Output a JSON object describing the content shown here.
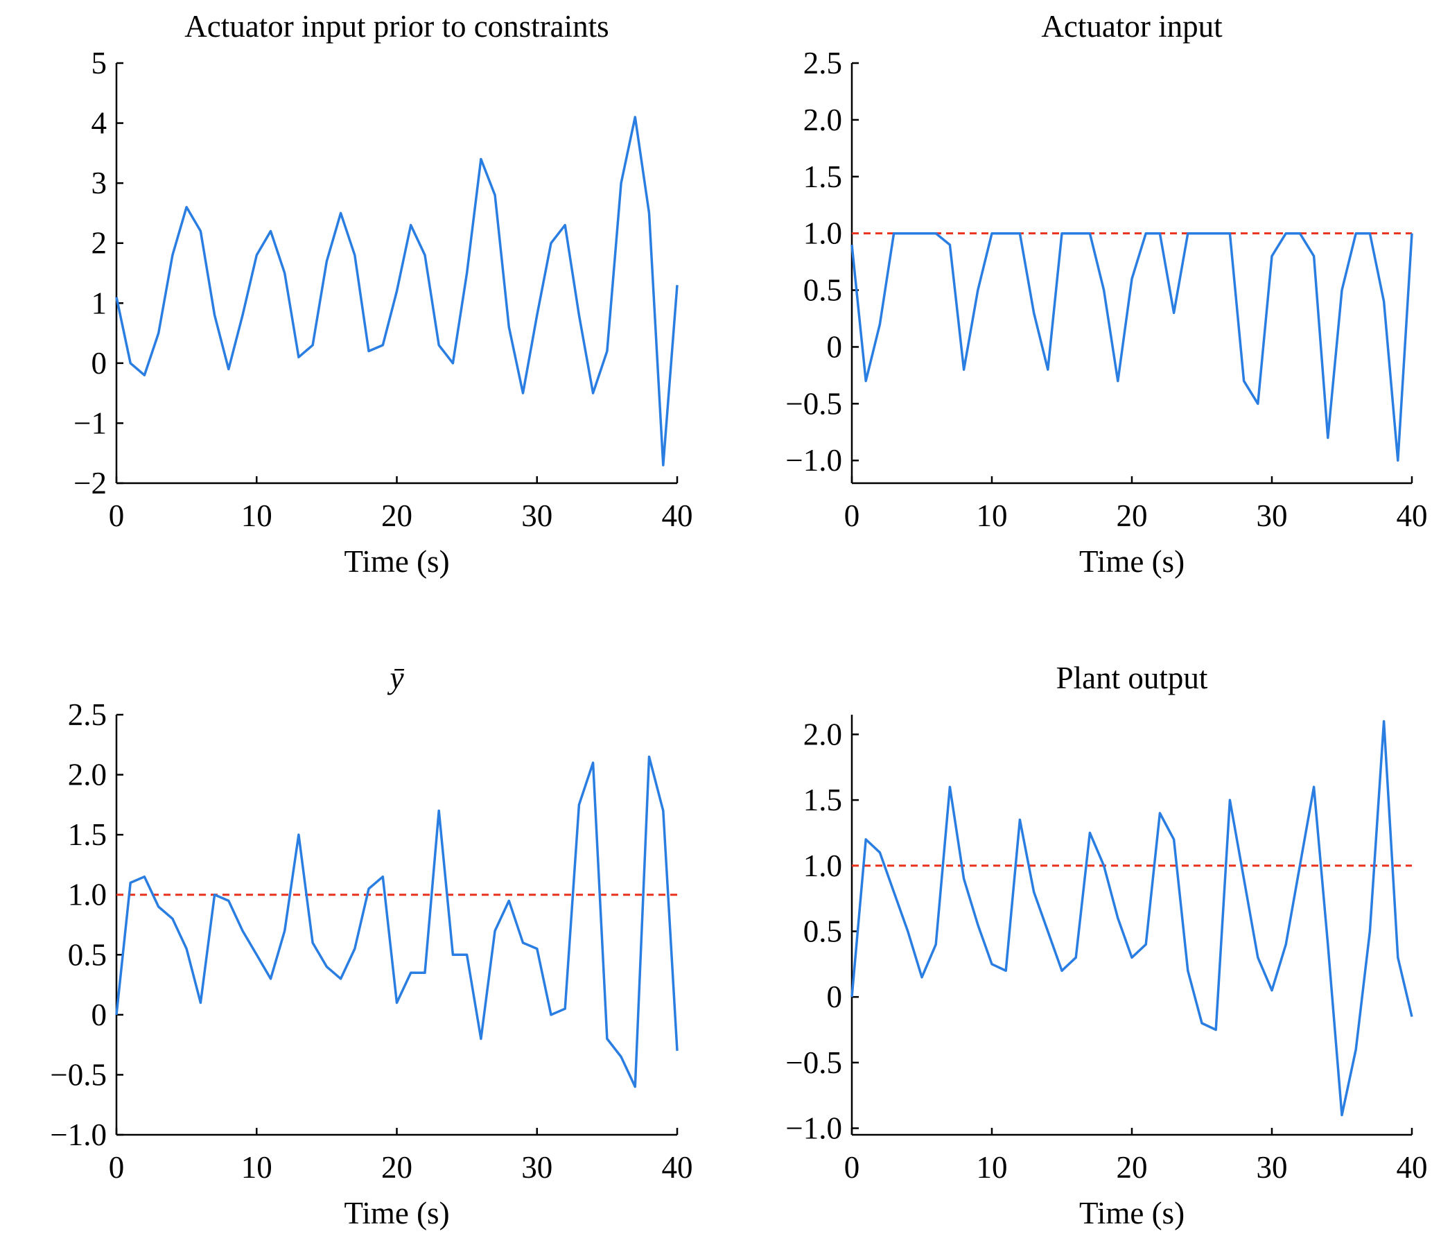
{
  "chart_data": [
    {
      "type": "line",
      "title": "Actuator input prior to constraints",
      "xlabel": "Time (s)",
      "x": [
        0,
        1,
        2,
        3,
        4,
        5,
        6,
        7,
        8,
        9,
        10,
        11,
        12,
        13,
        14,
        15,
        16,
        17,
        18,
        19,
        20,
        21,
        22,
        23,
        24,
        25,
        26,
        27,
        28,
        29,
        30,
        31,
        32,
        33,
        34,
        35,
        36,
        37,
        38,
        39,
        40
      ],
      "series": [
        {
          "name": null,
          "color": "#2a7de1",
          "values": [
            1.1,
            0.0,
            -0.2,
            0.5,
            1.8,
            2.6,
            2.2,
            0.8,
            -0.1,
            0.8,
            1.8,
            2.2,
            1.5,
            0.1,
            0.3,
            1.7,
            2.5,
            1.8,
            0.2,
            0.3,
            1.2,
            2.3,
            1.8,
            0.3,
            0.0,
            1.5,
            3.4,
            2.8,
            0.6,
            -0.5,
            0.8,
            2.0,
            2.3,
            0.8,
            -0.5,
            0.2,
            3.0,
            4.1,
            2.5,
            -1.7,
            1.3
          ]
        }
      ],
      "xlim": [
        0,
        40
      ],
      "xticks": [
        0,
        10,
        20,
        30,
        40
      ],
      "ylim": [
        -2,
        5
      ],
      "yticks": [
        {
          "value": -2,
          "label": "−2"
        },
        {
          "value": -1,
          "label": "−1"
        },
        0,
        1,
        2,
        3,
        4,
        5
      ]
    },
    {
      "type": "line",
      "title": "Actuator input",
      "xlabel": "Time (s)",
      "x": [
        0,
        1,
        2,
        3,
        4,
        5,
        6,
        7,
        8,
        9,
        10,
        11,
        12,
        13,
        14,
        15,
        16,
        17,
        18,
        19,
        20,
        21,
        22,
        23,
        24,
        25,
        26,
        27,
        28,
        29,
        30,
        31,
        32,
        33,
        34,
        35,
        36,
        37,
        38,
        39,
        40
      ],
      "series": [
        {
          "name": null,
          "color": "#2a7de1",
          "values": [
            0.9,
            -0.3,
            0.2,
            1,
            1,
            1,
            1,
            0.9,
            -0.2,
            0.5,
            1,
            1,
            1,
            0.3,
            -0.2,
            1,
            1,
            1,
            0.5,
            -0.3,
            0.6,
            1,
            1,
            0.3,
            1,
            1,
            1,
            1,
            -0.3,
            -0.5,
            0.8,
            1,
            1,
            0.8,
            -0.8,
            0.5,
            1,
            1,
            0.4,
            -1,
            1
          ]
        }
      ],
      "reference": {
        "value": 1,
        "color": "#e8321e"
      },
      "xlim": [
        0,
        40
      ],
      "xticks": [
        0,
        10,
        20,
        30,
        40
      ],
      "ylim": [
        -1.2,
        2.5
      ],
      "yticks": [
        {
          "value": -1,
          "label": "−1.0"
        },
        {
          "value": -0.5,
          "label": "−0.5"
        },
        0,
        0.5,
        {
          "value": 1,
          "label": "1.0"
        },
        1.5,
        {
          "value": 2,
          "label": "2.0"
        },
        2.5
      ]
    },
    {
      "type": "line",
      "title": "ȳ",
      "xlabel": "Time (s)",
      "x": [
        0,
        1,
        2,
        3,
        4,
        5,
        6,
        7,
        8,
        9,
        10,
        11,
        12,
        13,
        14,
        15,
        16,
        17,
        18,
        19,
        20,
        21,
        22,
        23,
        24,
        25,
        26,
        27,
        28,
        29,
        30,
        31,
        32,
        33,
        34,
        35,
        36,
        37,
        38,
        39,
        40
      ],
      "series": [
        {
          "name": null,
          "color": "#2a7de1",
          "values": [
            0,
            1.1,
            1.15,
            0.9,
            0.8,
            0.55,
            0.1,
            1.0,
            0.95,
            0.7,
            0.5,
            0.3,
            0.7,
            1.5,
            0.6,
            0.4,
            0.3,
            0.55,
            1.05,
            1.15,
            0.1,
            0.35,
            0.35,
            1.7,
            0.5,
            0.5,
            -0.2,
            0.7,
            0.95,
            0.6,
            0.55,
            0.0,
            0.05,
            1.75,
            2.1,
            -0.2,
            -0.35,
            -0.6,
            2.15,
            1.7,
            -0.3
          ]
        }
      ],
      "reference": {
        "value": 1,
        "color": "#e8321e"
      },
      "xlim": [
        0,
        40
      ],
      "xticks": [
        0,
        10,
        20,
        30,
        40
      ],
      "ylim": [
        -1,
        2.5
      ],
      "yticks": [
        {
          "value": -1,
          "label": "−1.0"
        },
        {
          "value": -0.5,
          "label": "−0.5"
        },
        0,
        0.5,
        {
          "value": 1,
          "label": "1.0"
        },
        1.5,
        {
          "value": 2,
          "label": "2.0"
        },
        2.5
      ]
    },
    {
      "type": "line",
      "title": "Plant output",
      "xlabel": "Time (s)",
      "x": [
        0,
        1,
        2,
        3,
        4,
        5,
        6,
        7,
        8,
        9,
        10,
        11,
        12,
        13,
        14,
        15,
        16,
        17,
        18,
        19,
        20,
        21,
        22,
        23,
        24,
        25,
        26,
        27,
        28,
        29,
        30,
        31,
        32,
        33,
        34,
        35,
        36,
        37,
        38,
        39,
        40
      ],
      "series": [
        {
          "name": null,
          "color": "#2a7de1",
          "values": [
            0,
            1.2,
            1.1,
            0.8,
            0.5,
            0.15,
            0.4,
            1.6,
            0.9,
            0.55,
            0.25,
            0.2,
            1.35,
            0.8,
            0.5,
            0.2,
            0.3,
            1.25,
            1.0,
            0.6,
            0.3,
            0.4,
            1.4,
            1.2,
            0.2,
            -0.2,
            -0.25,
            1.5,
            0.9,
            0.3,
            0.05,
            0.4,
            1.0,
            1.6,
            0.4,
            -0.9,
            -0.4,
            0.5,
            2.1,
            0.3,
            -0.15
          ]
        }
      ],
      "reference": {
        "value": 1,
        "color": "#e8321e"
      },
      "xlim": [
        0,
        40
      ],
      "xticks": [
        0,
        10,
        20,
        30,
        40
      ],
      "ylim": [
        -1.05,
        2.15
      ],
      "yticks": [
        {
          "value": -1,
          "label": "−1.0"
        },
        {
          "value": -0.5,
          "label": "−0.5"
        },
        0,
        0.5,
        {
          "value": 1,
          "label": "1.0"
        },
        1.5,
        {
          "value": 2,
          "label": "2.0"
        }
      ]
    }
  ]
}
